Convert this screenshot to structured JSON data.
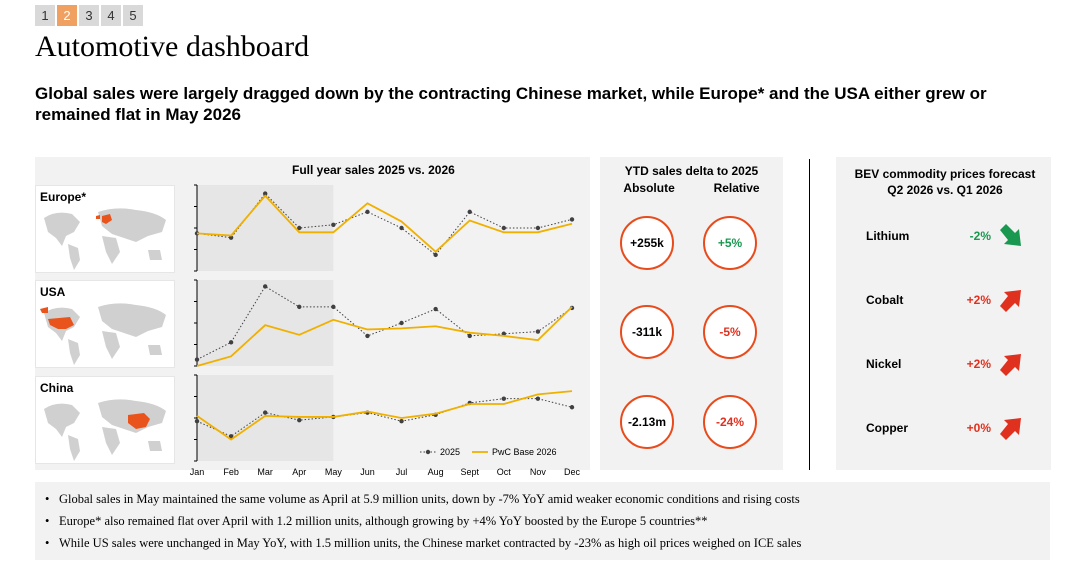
{
  "pager": {
    "pages": [
      "1",
      "2",
      "3",
      "4",
      "5"
    ],
    "active_index": 1
  },
  "title": "Automotive dashboard",
  "headline": "Global sales were largely dragged down by the contracting Chinese market, while Europe* and the USA either grew or remained flat in May 2026",
  "regions": [
    {
      "label": "Europe*"
    },
    {
      "label": "USA"
    },
    {
      "label": "China"
    }
  ],
  "chart_title": "Full year sales 2025 vs. 2026",
  "chart_data": [
    {
      "type": "line",
      "region": "Europe*",
      "categories": [
        "Jan",
        "Feb",
        "Mar",
        "Apr",
        "May",
        "Jun",
        "Jul",
        "Aug",
        "Sept",
        "Oct",
        "Nov",
        "Dec"
      ],
      "series": [
        {
          "name": "2025",
          "values": [
            3.5,
            3.1,
            7.2,
            4.0,
            4.3,
            5.5,
            4.0,
            1.5,
            5.5,
            4.0,
            4.0,
            4.8
          ],
          "color": "#404040"
        },
        {
          "name": "PwC Base 2026",
          "values": [
            3.5,
            3.3,
            7.0,
            3.6,
            3.6,
            6.3,
            4.6,
            1.8,
            4.7,
            3.6,
            3.6,
            4.4
          ],
          "color": "#f0b000"
        }
      ],
      "ylim": [
        0,
        8
      ]
    },
    {
      "type": "line",
      "region": "USA",
      "categories": [
        "Jan",
        "Feb",
        "Mar",
        "Apr",
        "May",
        "Jun",
        "Jul",
        "Aug",
        "Sept",
        "Oct",
        "Nov",
        "Dec"
      ],
      "series": [
        {
          "name": "2025",
          "values": [
            0.6,
            2.2,
            7.4,
            5.5,
            5.5,
            2.8,
            4.0,
            5.3,
            2.8,
            3.0,
            3.2,
            5.4
          ],
          "color": "#404040"
        },
        {
          "name": "PwC Base 2026",
          "values": [
            0.0,
            0.9,
            3.8,
            2.9,
            4.3,
            3.4,
            3.5,
            3.7,
            3.1,
            2.8,
            2.4,
            5.5
          ],
          "color": "#f0b000"
        }
      ],
      "ylim": [
        0,
        8
      ]
    },
    {
      "type": "line",
      "region": "China",
      "categories": [
        "Jan",
        "Feb",
        "Mar",
        "Apr",
        "May",
        "Jun",
        "Jul",
        "Aug",
        "Sept",
        "Oct",
        "Nov",
        "Dec"
      ],
      "series": [
        {
          "name": "2025",
          "values": [
            3.7,
            2.3,
            4.5,
            3.8,
            4.1,
            4.5,
            3.7,
            4.3,
            5.4,
            5.8,
            5.8,
            5.0
          ],
          "color": "#404040"
        },
        {
          "name": "PwC Base 2026",
          "values": [
            4.2,
            2.0,
            4.2,
            4.1,
            4.1,
            4.6,
            4.0,
            4.4,
            5.3,
            5.3,
            6.2,
            6.5
          ],
          "color": "#f0b000"
        }
      ],
      "ylim": [
        0,
        8
      ]
    }
  ],
  "legend": {
    "s2025": "2025",
    "s2026": "PwC Base 2026"
  },
  "colors": {
    "accent": "#f0b000",
    "series_2025": "#404040",
    "circle_border": "#e84b1c",
    "positive": "#1a9850",
    "negative": "#e0301e"
  },
  "ytd": {
    "title": "YTD sales delta to 2025",
    "col_absolute": "Absolute",
    "col_relative": "Relative",
    "rows": [
      {
        "absolute": "+255k",
        "relative": "+5%",
        "relative_sign": "positive"
      },
      {
        "absolute": "-311k",
        "relative": "-5%",
        "relative_sign": "negative"
      },
      {
        "absolute": "-2.13m",
        "relative": "-24%",
        "relative_sign": "negative"
      }
    ]
  },
  "bev": {
    "title_line1": "BEV commodity prices forecast",
    "title_line2": "Q2 2026 vs. Q1 2026",
    "items": [
      {
        "name": "Lithium",
        "value": "-2%",
        "direction": "down",
        "icon": "arrow-down-right-icon"
      },
      {
        "name": "Cobalt",
        "value": "+2%",
        "direction": "up",
        "icon": "arrow-up-right-icon"
      },
      {
        "name": "Nickel",
        "value": "+2%",
        "direction": "up",
        "icon": "arrow-up-right-icon"
      },
      {
        "name": "Copper",
        "value": "+0%",
        "direction": "up",
        "icon": "arrow-up-right-icon"
      }
    ]
  },
  "notes": [
    "Global sales in May maintained the same volume as April at 5.9 million units, down by -7% YoY amid weaker economic conditions and rising costs",
    "Europe* also remained flat over April with 1.2 million units, although growing by +4% YoY boosted by the Europe 5 countries**",
    "While US sales were unchanged in May YoY, with 1.5 million units, the Chinese market contracted by -23% as high oil prices weighed on ICE sales"
  ]
}
